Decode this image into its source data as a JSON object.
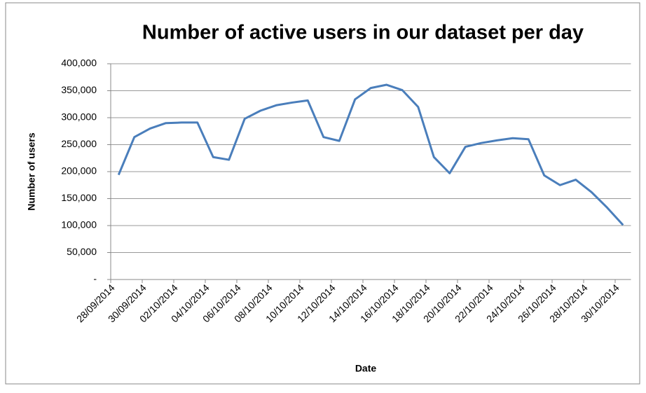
{
  "chart_data": {
    "type": "line",
    "title": "Number of active users in our dataset per day",
    "x_label": "Date",
    "y_label": "Number of users",
    "categories": [
      "28/09/2014",
      null,
      "30/09/2014",
      null,
      "02/10/2014",
      null,
      "04/10/2014",
      null,
      "06/10/2014",
      null,
      "08/10/2014",
      null,
      "10/10/2014",
      null,
      "12/10/2014",
      null,
      "14/10/2014",
      null,
      "16/10/2014",
      null,
      "18/10/2014",
      null,
      "20/10/2014",
      null,
      "22/10/2014",
      null,
      "24/10/2014",
      null,
      "26/10/2014",
      null,
      "28/10/2014",
      null,
      "30/10/2014"
    ],
    "values": [
      194000,
      264000,
      280000,
      290000,
      291000,
      291000,
      227000,
      222000,
      298000,
      313000,
      323000,
      328000,
      332000,
      264000,
      257000,
      334000,
      355000,
      361000,
      351000,
      320000,
      227000,
      197000,
      246000,
      253000,
      258000,
      262000,
      260000,
      193000,
      175000,
      185000,
      162000,
      133000,
      101000
    ],
    "color": "#4a7ebb",
    "ylim": [
      0,
      400000
    ],
    "yticks": [
      {
        "value": 0,
        "label": "-"
      },
      {
        "value": 50000,
        "label": "50,000"
      },
      {
        "value": 100000,
        "label": "100,000"
      },
      {
        "value": 150000,
        "label": "150,000"
      },
      {
        "value": 200000,
        "label": "200,000"
      },
      {
        "value": 250000,
        "label": "250,000"
      },
      {
        "value": 300000,
        "label": "300,000"
      },
      {
        "value": 350000,
        "label": "350,000"
      },
      {
        "value": 400000,
        "label": "400,000"
      }
    ],
    "grid": true
  }
}
